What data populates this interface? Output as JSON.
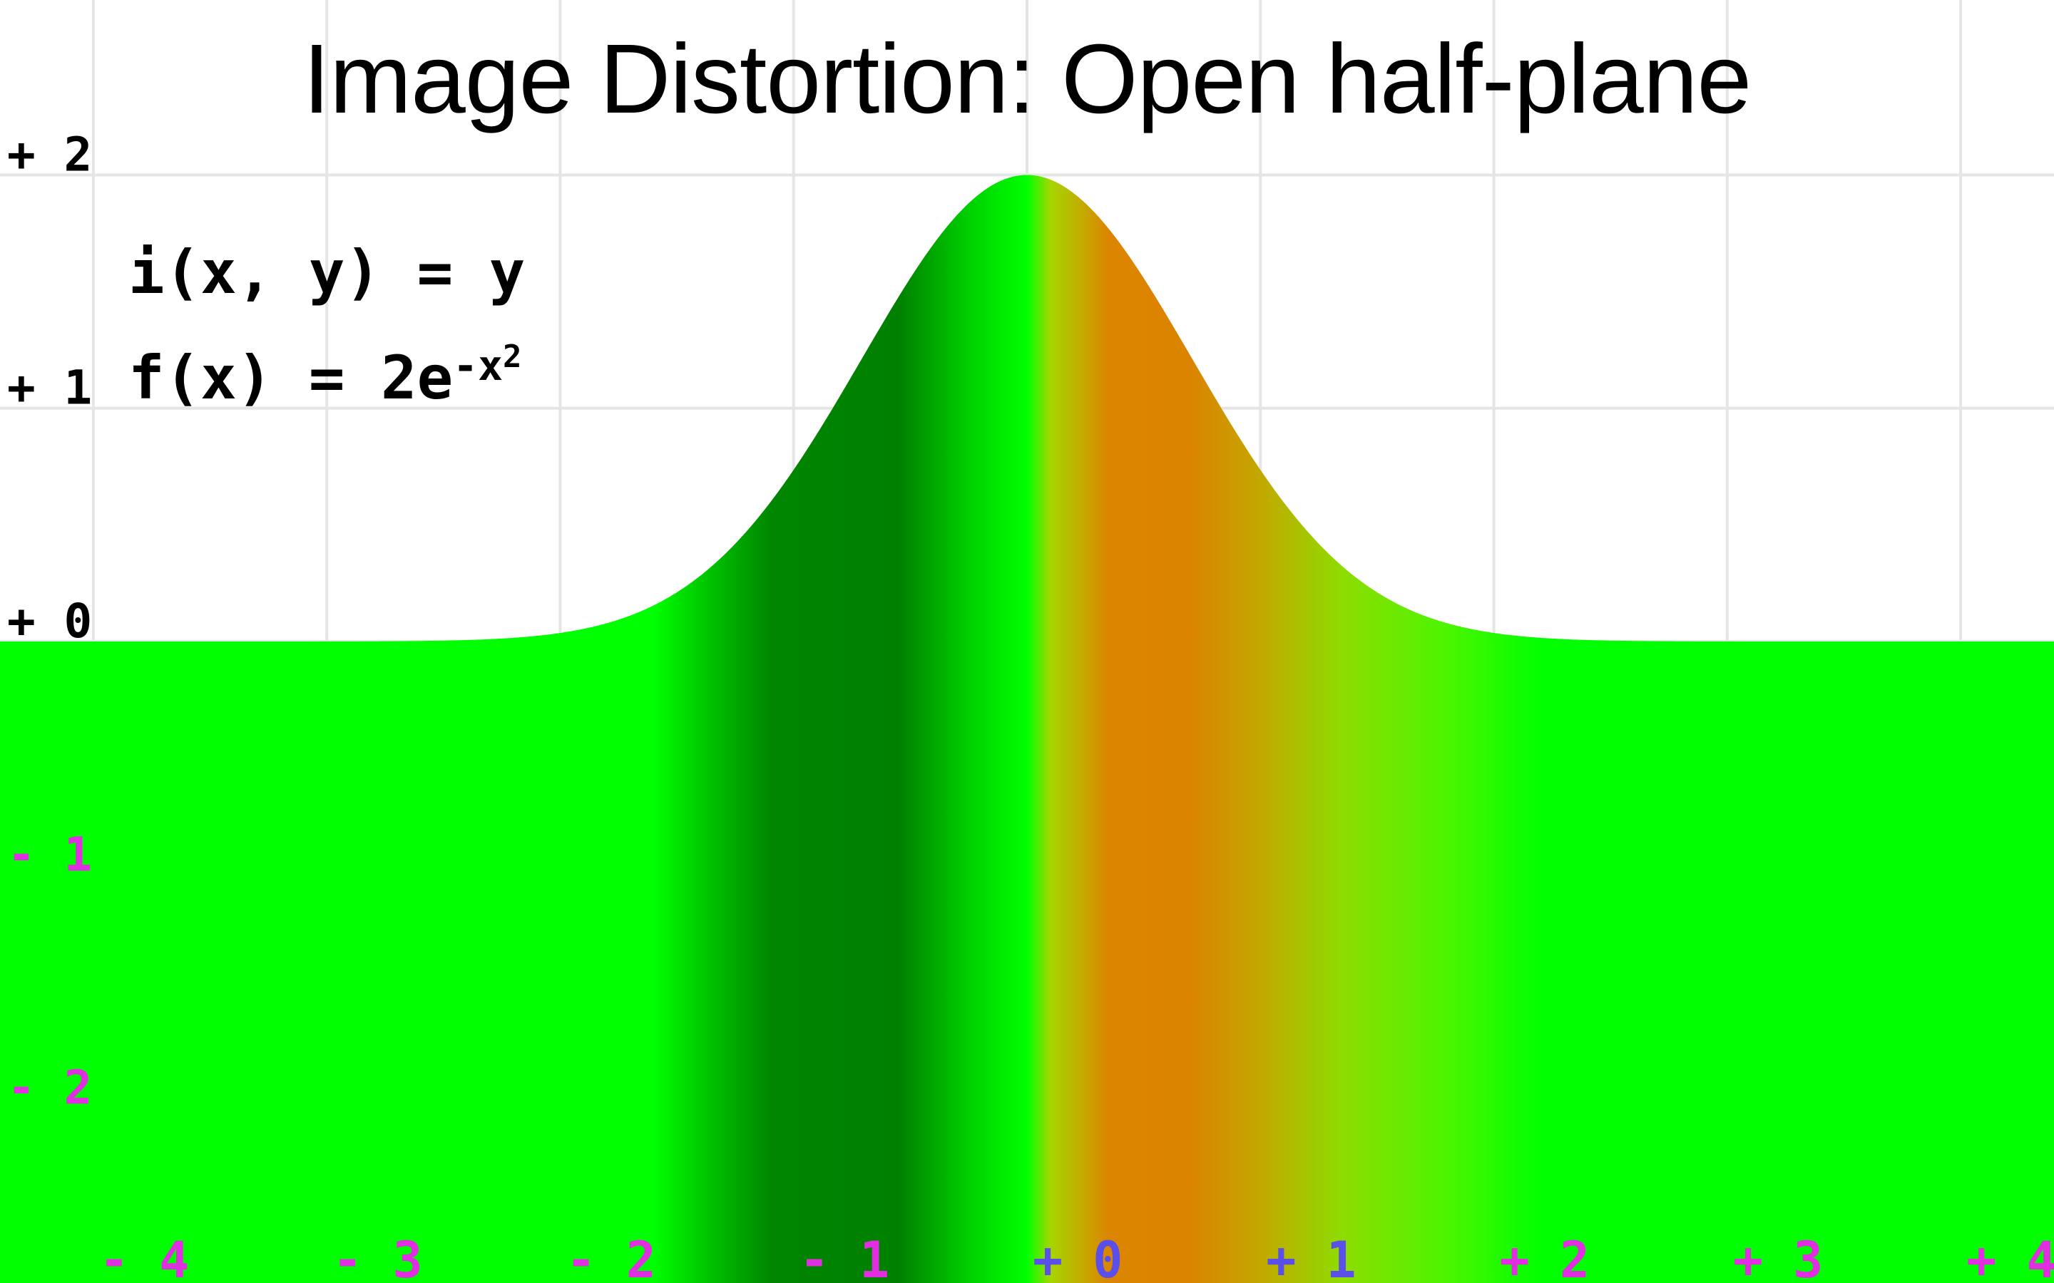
{
  "title": "Image Distortion: Open half-plane",
  "formulas": {
    "i_text": "i(x, y) = y",
    "f_prefix": "f(x) = 2e",
    "f_exponent": "-x",
    "f_exponent_power": "2"
  },
  "colors": {
    "background": "#ffffff",
    "grid": "#e5e5e5",
    "tick_above": "#000000",
    "tick_below": "#e02fe0",
    "tick_inside_image": "#5a4fe8",
    "image_base": "#00ff00",
    "image_dark": "#007f00",
    "image_orange": "#db8500"
  },
  "chart_data": {
    "type": "area",
    "title": "Image Distortion: Open half-plane",
    "xlabel": "",
    "ylabel": "",
    "xlim": [
      -4.4,
      4.4
    ],
    "ylim": [
      -2.75,
      2.75
    ],
    "grid": true,
    "legend": "none",
    "x_ticks": [
      {
        "value": -4,
        "label": "- 4"
      },
      {
        "value": -3,
        "label": "- 3"
      },
      {
        "value": -2,
        "label": "- 2"
      },
      {
        "value": -1,
        "label": "- 1"
      },
      {
        "value": 0,
        "label": "+ 0"
      },
      {
        "value": 1,
        "label": "+ 1"
      },
      {
        "value": 2,
        "label": "+ 2"
      },
      {
        "value": 3,
        "label": "+ 3"
      },
      {
        "value": 4,
        "label": "+ 4"
      }
    ],
    "y_ticks": [
      {
        "value": 2,
        "label": "+ 2"
      },
      {
        "value": 1,
        "label": "+ 1"
      },
      {
        "value": 0,
        "label": "+ 0"
      },
      {
        "value": -1,
        "label": "- 1"
      },
      {
        "value": -2,
        "label": "- 2"
      }
    ],
    "series": [
      {
        "function": "2*exp(-x^2)",
        "x": [
          -4,
          -3.5,
          -3,
          -2.5,
          -2,
          -1.5,
          -1,
          -0.75,
          -0.5,
          -0.25,
          0,
          0.25,
          0.5,
          0.75,
          1,
          1.5,
          2,
          2.5,
          3,
          3.5,
          4
        ],
        "y": [
          0,
          0,
          0,
          0.004,
          0.037,
          0.211,
          0.736,
          1.14,
          1.558,
          1.879,
          2.0,
          1.879,
          1.558,
          1.14,
          0.736,
          0.211,
          0.037,
          0.004,
          0,
          0,
          0
        ]
      }
    ],
    "image_color_stops": [
      {
        "x": -4.4,
        "color": "#00ff00"
      },
      {
        "x": -1.6,
        "color": "#00ff00"
      },
      {
        "x": -1.4,
        "color": "#00cc00"
      },
      {
        "x": -1.1,
        "color": "#008600"
      },
      {
        "x": -0.55,
        "color": "#008000"
      },
      {
        "x": -0.25,
        "color": "#00d000"
      },
      {
        "x": 0.0,
        "color": "#00ff00"
      },
      {
        "x": 0.1,
        "color": "#a6d600"
      },
      {
        "x": 0.35,
        "color": "#dc8500"
      },
      {
        "x": 0.7,
        "color": "#db8400"
      },
      {
        "x": 1.0,
        "color": "#c3a800"
      },
      {
        "x": 1.35,
        "color": "#8edc00"
      },
      {
        "x": 1.8,
        "color": "#4cf500"
      },
      {
        "x": 2.2,
        "color": "#00ff00"
      },
      {
        "x": 4.4,
        "color": "#00ff00"
      }
    ]
  }
}
